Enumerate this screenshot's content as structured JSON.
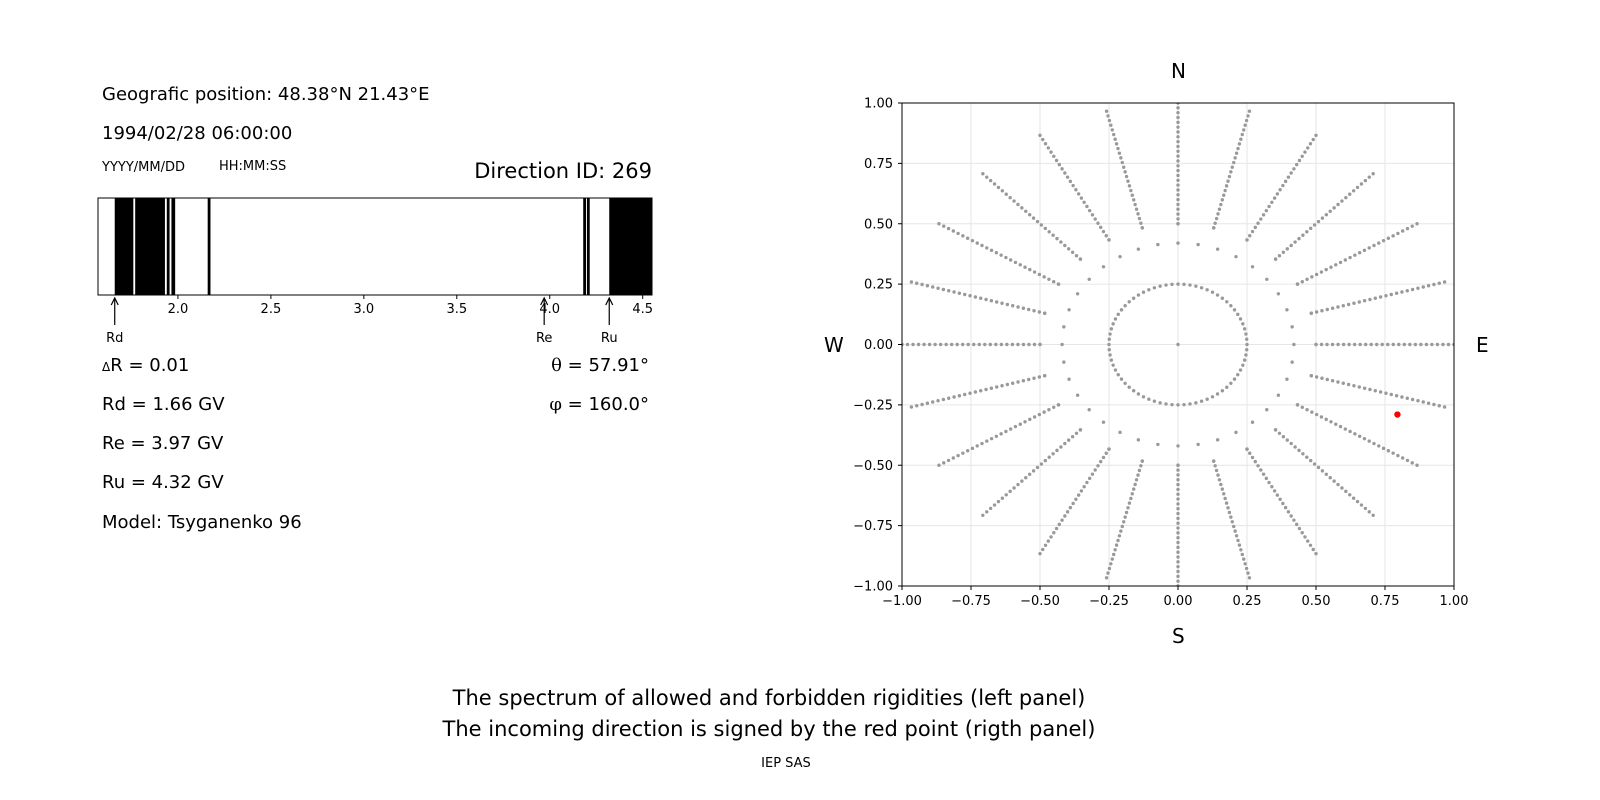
{
  "left_panel": {
    "position_text": "Geografic position: 48.38°N 21.43°E",
    "datetime_text": "1994/02/28 06:00:00",
    "date_format_label": "YYYY/MM/DD",
    "time_format_label": "HH:MM:SS",
    "direction_id_text": "Direction ID: 269",
    "delta_r": {
      "symbol": "Δ",
      "text": "R = 0.01"
    },
    "rd_text": "Rd = 1.66 GV",
    "re_text": "Re = 3.97 GV",
    "ru_text": "Ru = 4.32 GV",
    "model_text": "Model: Tsyganenko 96",
    "theta": {
      "symbol": "θ",
      "text": " = 57.91°"
    },
    "phi": {
      "symbol": "φ",
      "text": " = 160.0°"
    }
  },
  "right_panel": {
    "compass": {
      "north": "N",
      "south": "S",
      "west": "W",
      "east": "E"
    }
  },
  "caption": {
    "line1": "The spectrum of allowed and forbidden rigidities (left panel)",
    "line2": "The incoming direction is signed by the red point (rigth panel)",
    "credit": "IEP SAS"
  },
  "colors": {
    "forbidden": "#000000",
    "allowed": "#ffffff",
    "grid_point": "#999999",
    "selected_point": "#ff0000",
    "gridline": "#e6e6e6"
  },
  "chart_data": [
    {
      "type": "bar",
      "title": "",
      "xlim": [
        1.57,
        4.55
      ],
      "xticks": [
        2.0,
        2.5,
        3.0,
        3.5,
        4.0,
        4.5
      ],
      "xtick_labels": [
        "2.0",
        "2.5",
        "3.0",
        "3.5",
        "4.0",
        "4.5"
      ],
      "forbidden_intervals": [
        [
          1.66,
          1.76
        ],
        [
          1.77,
          1.93
        ],
        [
          1.94,
          1.955
        ],
        [
          1.965,
          1.985
        ],
        [
          2.16,
          2.175
        ],
        [
          4.18,
          4.195
        ],
        [
          4.2,
          4.215
        ],
        [
          4.32,
          4.55
        ]
      ],
      "markers": [
        {
          "label": "Rd",
          "value": 1.66
        },
        {
          "label": "Re",
          "value": 3.97
        },
        {
          "label": "Ru",
          "value": 4.32
        }
      ]
    },
    {
      "type": "scatter",
      "title": "",
      "xlim": [
        -1.0,
        1.0
      ],
      "ylim": [
        -1.0,
        1.0
      ],
      "grid": true,
      "xticks": [
        "−1.00",
        "−0.75",
        "−0.50",
        "−0.25",
        "0.00",
        "0.25",
        "0.50",
        "0.75",
        "1.00"
      ],
      "yticks": [
        "1.00",
        "0.75",
        "0.50",
        "0.25",
        "0.00",
        "−0.25",
        "−0.50",
        "−0.75",
        "−1.00"
      ],
      "tick_values": [
        -1.0,
        -0.75,
        -0.5,
        -0.25,
        0.0,
        0.25,
        0.5,
        0.75,
        1.0
      ],
      "series": [
        {
          "rings": [
            {
              "radius": 0.25,
              "azimuth_step_deg": 5
            },
            {
              "radius": 0.42,
              "azimuth_step_deg": 10
            },
            {
              "radius": 0.5,
              "azimuth_step_deg": 15
            },
            {
              "radius_from": 0.5,
              "radius_to": 1.0,
              "radius_step": 0.02,
              "azimuth_step_deg": 15
            }
          ],
          "center_point": [
            0.0,
            0.0
          ]
        },
        {
          "points": [
            [
              0.795,
              -0.29
            ]
          ]
        }
      ]
    }
  ]
}
